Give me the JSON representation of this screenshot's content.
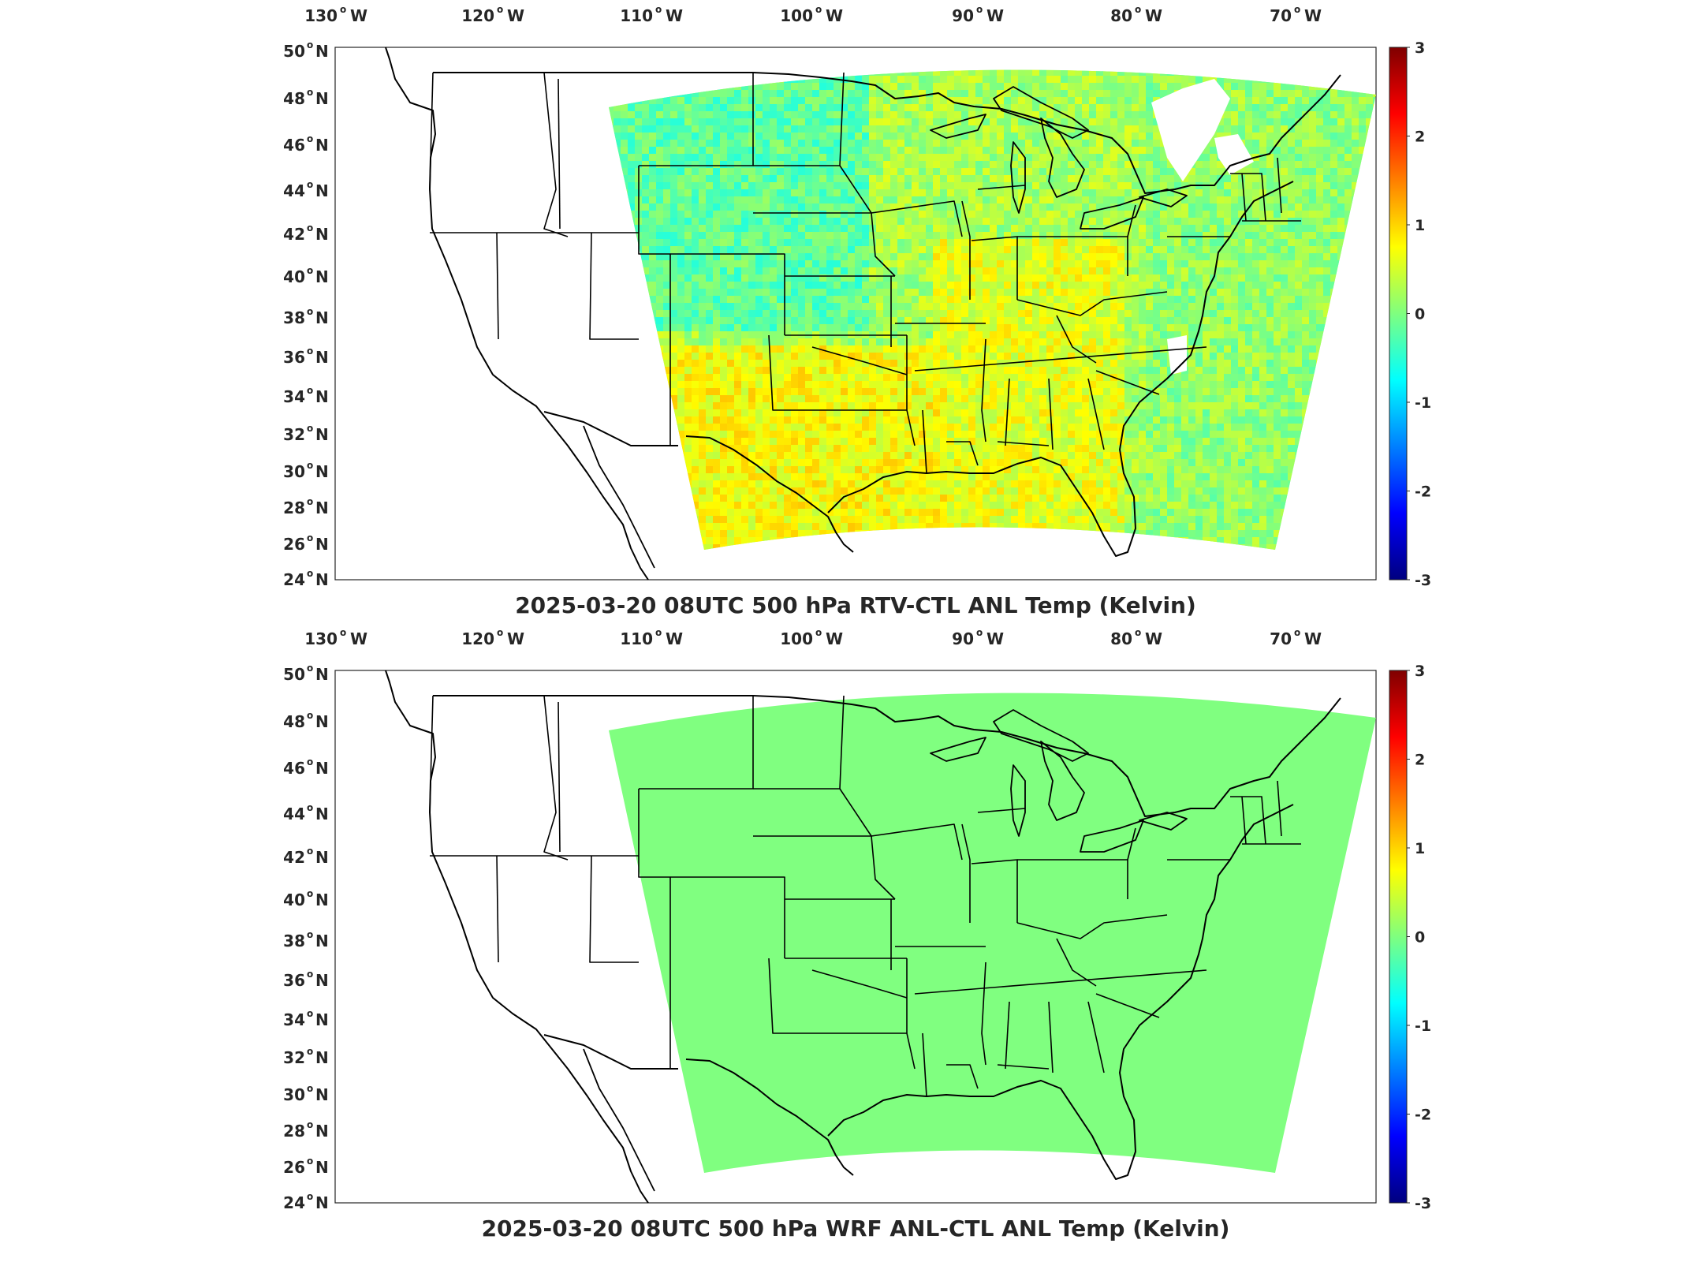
{
  "panels": [
    {
      "title": "2025-03-20 08UTC 500 hPa RTV-CTL ANL Temp (Kelvin)",
      "field": "mixed",
      "colorbar": {
        "min": -3,
        "max": 3,
        "ticks": [
          "3",
          "2",
          "1",
          "0",
          "-1",
          "-2",
          "-3"
        ]
      }
    },
    {
      "title": "2025-03-20 08UTC 500 hPa WRF ANL-CTL ANL Temp (Kelvin)",
      "field": "uniform",
      "colorbar": {
        "min": -3,
        "max": 3,
        "ticks": [
          "3",
          "2",
          "1",
          "0",
          "-1",
          "-2",
          "-3"
        ]
      }
    }
  ],
  "lon_ticks": [
    {
      "value": "130",
      "hemi": "W"
    },
    {
      "value": "120",
      "hemi": "W"
    },
    {
      "value": "110",
      "hemi": "W"
    },
    {
      "value": "100",
      "hemi": "W"
    },
    {
      "value": "90",
      "hemi": "W"
    },
    {
      "value": "80",
      "hemi": "W"
    },
    {
      "value": "70",
      "hemi": "W"
    }
  ],
  "lat_ticks": [
    {
      "value": "50",
      "hemi": "N"
    },
    {
      "value": "48",
      "hemi": "N"
    },
    {
      "value": "46",
      "hemi": "N"
    },
    {
      "value": "44",
      "hemi": "N"
    },
    {
      "value": "42",
      "hemi": "N"
    },
    {
      "value": "40",
      "hemi": "N"
    },
    {
      "value": "38",
      "hemi": "N"
    },
    {
      "value": "36",
      "hemi": "N"
    },
    {
      "value": "34",
      "hemi": "N"
    },
    {
      "value": "32",
      "hemi": "N"
    },
    {
      "value": "30",
      "hemi": "N"
    },
    {
      "value": "28",
      "hemi": "N"
    },
    {
      "value": "26",
      "hemi": "N"
    },
    {
      "value": "24",
      "hemi": "N"
    }
  ],
  "colors": {
    "uniform_field": "#80ff80",
    "colormap": [
      "#00007f",
      "#0000ff",
      "#007fff",
      "#00ffff",
      "#7fff7f",
      "#ffff00",
      "#ff7f00",
      "#ff0000",
      "#7f0000"
    ]
  }
}
